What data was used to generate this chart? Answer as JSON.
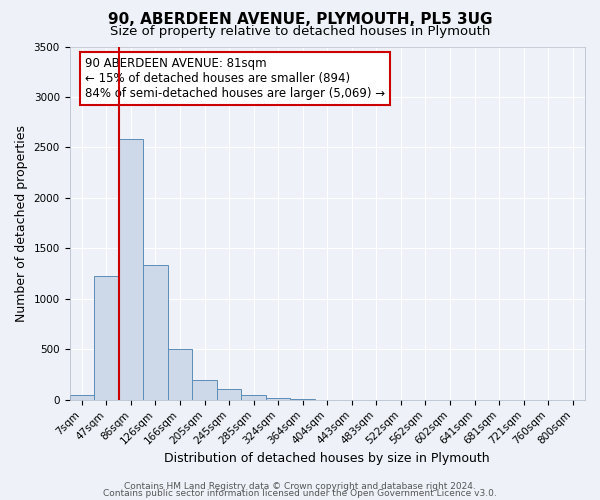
{
  "title": "90, ABERDEEN AVENUE, PLYMOUTH, PL5 3UG",
  "subtitle": "Size of property relative to detached houses in Plymouth",
  "xlabel": "Distribution of detached houses by size in Plymouth",
  "ylabel": "Number of detached properties",
  "bar_values": [
    50,
    1230,
    2580,
    1340,
    500,
    200,
    110,
    50,
    20,
    5,
    0,
    0,
    0,
    0,
    0,
    0,
    0,
    0,
    0,
    0,
    0
  ],
  "bar_labels": [
    "7sqm",
    "47sqm",
    "86sqm",
    "126sqm",
    "166sqm",
    "205sqm",
    "245sqm",
    "285sqm",
    "324sqm",
    "364sqm",
    "404sqm",
    "443sqm",
    "483sqm",
    "522sqm",
    "562sqm",
    "602sqm",
    "641sqm",
    "681sqm",
    "721sqm",
    "760sqm",
    "800sqm"
  ],
  "bar_color": "#cdd8e8",
  "bar_edge_color": "#5b8db8",
  "vline_x_index": 2,
  "vline_color": "#cc0000",
  "ylim": [
    0,
    3500
  ],
  "yticks": [
    0,
    500,
    1000,
    1500,
    2000,
    2500,
    3000,
    3500
  ],
  "annotation_box_text": "90 ABERDEEN AVENUE: 81sqm\n← 15% of detached houses are smaller (894)\n84% of semi-detached houses are larger (5,069) →",
  "annotation_box_color": "#ffffff",
  "annotation_box_edge_color": "#cc0000",
  "footer_line1": "Contains HM Land Registry data © Crown copyright and database right 2024.",
  "footer_line2": "Contains public sector information licensed under the Open Government Licence v3.0.",
  "background_color": "#eef2f8",
  "grid_color": "#ffffff",
  "title_fontsize": 11,
  "subtitle_fontsize": 9.5,
  "axis_label_fontsize": 9,
  "tick_fontsize": 7.5,
  "annotation_fontsize": 8.5,
  "footer_fontsize": 6.5
}
